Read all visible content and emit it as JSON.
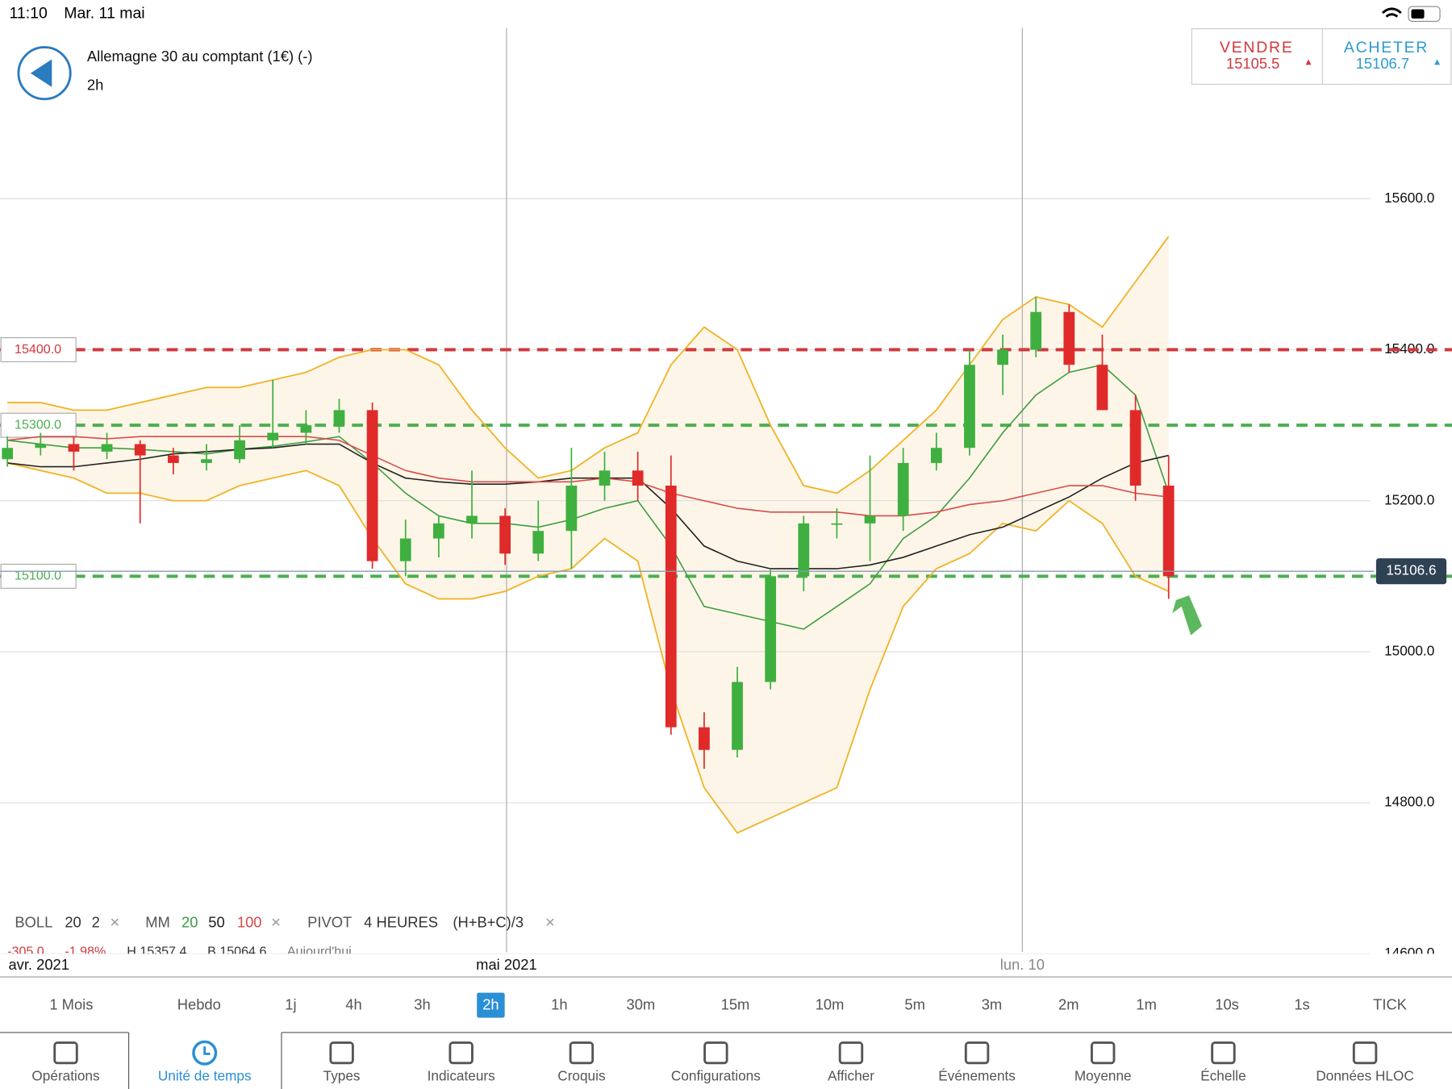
{
  "status_bar": {
    "time": "11:10",
    "date": "Mar. 11 mai"
  },
  "header": {
    "title": "Allemagne 30 au comptant (1€) (-)",
    "interval": "2h",
    "sell": {
      "label": "VENDRE",
      "price": 15105.5
    },
    "buy": {
      "label": "ACHETER",
      "price": 15106.7
    }
  },
  "chart_data": {
    "type": "candlestick",
    "ylim": [
      14600,
      15830
    ],
    "yticks": [
      {
        "value": 14600,
        "label": "14600.0"
      },
      {
        "value": 14800,
        "label": "14800.0"
      },
      {
        "value": 15000,
        "label": "15000.0"
      },
      {
        "value": 15200,
        "label": "15200.0"
      },
      {
        "value": 15400,
        "label": "15400.0"
      },
      {
        "value": 15600,
        "label": "15600.0"
      }
    ],
    "open": [
      15255,
      15270,
      15275,
      15265,
      15275,
      15260,
      15250,
      15255,
      15280,
      15290,
      15300,
      15320,
      15120,
      15150,
      15170,
      15180,
      15130,
      15160,
      15220,
      15240,
      15220,
      14900,
      14870,
      14960,
      15100,
      15170,
      15170,
      15180,
      15250,
      15270,
      15380,
      15400,
      15450,
      15380,
      15320,
      15220
    ],
    "high": [
      15285,
      15290,
      15285,
      15290,
      15280,
      15270,
      15275,
      15300,
      15360,
      15320,
      15335,
      15330,
      15175,
      15180,
      15240,
      15190,
      15200,
      15270,
      15265,
      15265,
      15260,
      14920,
      14980,
      15110,
      15180,
      15190,
      15260,
      15270,
      15290,
      15400,
      15420,
      15470,
      15460,
      15420,
      15340,
      15260
    ],
    "low": [
      15245,
      15260,
      15240,
      15255,
      15170,
      15235,
      15240,
      15250,
      15270,
      15275,
      15290,
      15110,
      15100,
      15125,
      15150,
      15115,
      15120,
      15110,
      15200,
      15200,
      14890,
      14845,
      14860,
      14950,
      15080,
      15150,
      15120,
      15160,
      15240,
      15260,
      15340,
      15390,
      15370,
      15320,
      15200,
      15070
    ],
    "close": [
      15270,
      15275,
      15265,
      15275,
      15260,
      15250,
      15255,
      15280,
      15290,
      15300,
      15320,
      15120,
      15150,
      15170,
      15180,
      15130,
      15160,
      15220,
      15240,
      15220,
      14900,
      14870,
      14960,
      15100,
      15170,
      15170,
      15180,
      15250,
      15270,
      15380,
      15400,
      15450,
      15380,
      15320,
      15220,
      15100
    ],
    "lines": [
      {
        "name": "BOLL",
        "color": "#f0b429",
        "values": [
          15330,
          15330,
          15320,
          15320,
          15330,
          15340,
          15350,
          15350,
          15360,
          15370,
          15390,
          15400,
          15400,
          15380,
          15320,
          15270,
          15230,
          15240,
          15270,
          15290,
          15380,
          15430,
          15400,
          15300,
          15220,
          15210,
          15240,
          15280,
          15320,
          15380,
          15440,
          15470,
          15460,
          15430,
          15490,
          15550
        ]
      },
      {
        "name": "BOLL",
        "color": "#f0b429",
        "values": [
          15250,
          15240,
          15230,
          15210,
          15210,
          15200,
          15200,
          15220,
          15230,
          15240,
          15220,
          15150,
          15090,
          15070,
          15070,
          15080,
          15100,
          15110,
          15150,
          15120,
          14950,
          14820,
          14760,
          14780,
          14800,
          14820,
          14950,
          15060,
          15110,
          15130,
          15170,
          15160,
          15200,
          15170,
          15100,
          15080
        ]
      },
      {
        "name": "MM",
        "color": "#3f9e3f",
        "values": [
          15280,
          15275,
          15270,
          15270,
          15268,
          15265,
          15262,
          15268,
          15272,
          15278,
          15285,
          15250,
          15210,
          15180,
          15170,
          15170,
          15165,
          15175,
          15190,
          15200,
          15140,
          15060,
          15050,
          15040,
          15030,
          15060,
          15090,
          15150,
          15180,
          15230,
          15290,
          15340,
          15370,
          15380,
          15340,
          15210
        ]
      },
      {
        "name": "MM",
        "color": "#222222",
        "values": [
          15250,
          15245,
          15245,
          15250,
          15255,
          15262,
          15265,
          15268,
          15270,
          15275,
          15275,
          15250,
          15230,
          15225,
          15222,
          15222,
          15225,
          15230,
          15230,
          15230,
          15190,
          15140,
          15120,
          15110,
          15110,
          15110,
          15115,
          15125,
          15140,
          15155,
          15165,
          15185,
          15205,
          15230,
          15250,
          15260
        ]
      },
      {
        "name": "MM",
        "color": "#d94b4b",
        "values": [
          15280,
          15285,
          15285,
          15282,
          15285,
          15285,
          15285,
          15285,
          15285,
          15285,
          15280,
          15260,
          15240,
          15230,
          15225,
          15225,
          15225,
          15225,
          15230,
          15225,
          15210,
          15200,
          15190,
          15185,
          15185,
          15185,
          15180,
          15180,
          15185,
          15195,
          15200,
          15210,
          15220,
          15220,
          15210,
          15205
        ]
      }
    ],
    "levels": [
      {
        "value": 15400,
        "label": "15400.0",
        "color": "#d0393e"
      },
      {
        "value": 15300,
        "label": "15300.0",
        "color": "#4caf50"
      },
      {
        "value": 15100,
        "label": "15100.0",
        "color": "#4caf50"
      }
    ],
    "current_price": 15106.6,
    "x_labels": [
      "avr. 2021",
      "mai 2021",
      "lun. 10"
    ]
  },
  "indicators": {
    "boll": [
      "BOLL",
      "20",
      "2"
    ],
    "mm": [
      "MM",
      "20",
      "50",
      "100"
    ],
    "pivot": [
      "PIVOT",
      "4 HEURES",
      "(H+B+C)/3"
    ],
    "info": [
      "-305.0",
      "-1.98%",
      "H 15357.4",
      "B 15064.6",
      "Aujourd'hui"
    ]
  },
  "timeframes": {
    "items": [
      "1 Mois",
      "Hebdo",
      "1j",
      "4h",
      "3h",
      "2h",
      "1h",
      "30m",
      "15m",
      "10m",
      "5m",
      "3m",
      "2m",
      "1m",
      "10s",
      "1s",
      "TICK"
    ],
    "selected": "2h"
  },
  "toolbar": {
    "items": [
      "Opérations",
      "Unité de temps",
      "Types",
      "Indicateurs",
      "Croquis",
      "Configurations",
      "Afficher",
      "Événements",
      "Moyenne",
      "Échelle",
      "Données HLOC"
    ],
    "selected": "Unité de temps"
  }
}
